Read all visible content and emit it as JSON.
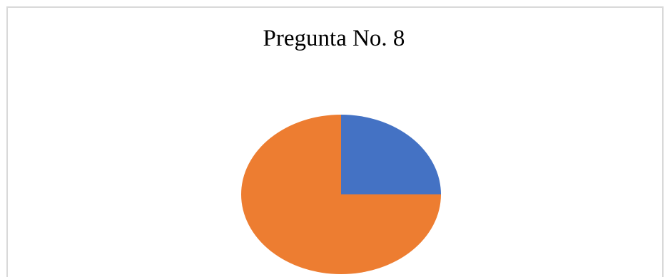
{
  "chart_data": {
    "type": "pie",
    "title": "Pregunta No. 8",
    "start_angle_deg": 0,
    "direction": "clockwise",
    "values": [
      25,
      75
    ],
    "colors": [
      "#4472c4",
      "#ed7d31"
    ],
    "legend": false
  }
}
